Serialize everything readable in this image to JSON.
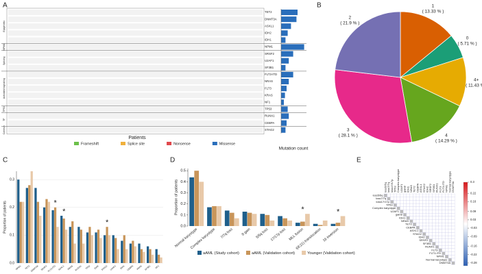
{
  "chart_data": [
    {
      "type": "oncoprint",
      "panel": "A",
      "categories": [
        "TET2",
        "DNMT3A",
        "ASXL1",
        "IDH2",
        "IDH1",
        "NPM1",
        "SRSF2",
        "U2AF1",
        "SF3B1",
        "FLT3-ITD",
        "NRAS",
        "FLT3",
        "KRAS",
        "NF1",
        "TP53",
        "RUNX1",
        "CEBPA",
        "STAG2"
      ],
      "values": [
        30,
        28,
        18,
        12,
        8,
        42,
        22,
        14,
        8,
        22,
        14,
        10,
        7,
        5,
        12,
        14,
        10,
        8
      ],
      "color": "#2a6ebb",
      "xlim": [
        0,
        45
      ],
      "groups": [
        {
          "name": "Epigenetic",
          "genes": [
            "TET2",
            "DNMT3A",
            "ASXL1",
            "IDH2",
            "IDH1"
          ]
        },
        {
          "name": "NPM1",
          "genes": [
            "NPM1"
          ]
        },
        {
          "name": "Splicing",
          "genes": [
            "SRSF2",
            "U2AF1",
            "SF3B1"
          ]
        },
        {
          "name": "Activated signaling",
          "genes": [
            "FLT3-ITD",
            "NRAS",
            "FLT3",
            "KRAS",
            "NF1"
          ]
        },
        {
          "name": "TP53",
          "genes": [
            "TP53"
          ]
        },
        {
          "name": "TF",
          "genes": [
            "RUNX1",
            "CEBPA"
          ]
        },
        {
          "name": "Cohesin",
          "genes": [
            "STAG2"
          ]
        }
      ],
      "xlabel": "Patients",
      "count_label": "Mutation count",
      "mutation_types": [
        {
          "name": "Frameshift",
          "color": "#6cc04a"
        },
        {
          "name": "Splice site",
          "color": "#f0b03c"
        },
        {
          "name": "Nonsense",
          "color": "#e0474c"
        },
        {
          "name": "Missense",
          "color": "#2a6ebb"
        }
      ]
    },
    {
      "type": "pie",
      "panel": "B",
      "categories": [
        "1",
        "0",
        "4+",
        "4",
        "3",
        "2"
      ],
      "values": [
        13.33,
        5.71,
        11.43,
        14.29,
        28.1,
        21.9
      ],
      "value_labels": [
        "( 13.33 % )",
        "( 5.71 % )",
        "( 11.43 % )",
        "( 14.29 % )",
        "( 28.1 % )",
        "( 21.9 % )"
      ],
      "colors": [
        "#d95f02",
        "#1b9e77",
        "#e6ab02",
        "#66a61e",
        "#e7298a",
        "#7570b3"
      ]
    },
    {
      "type": "bar",
      "panel": "C",
      "categories": [
        "NPM1",
        "TET2",
        "DNMT3A",
        "SRSF2",
        "FLT3-ITD",
        "ASXL1",
        "NRAS",
        "RUNX1",
        "TP53",
        "IDH2",
        "STAG2",
        "U2AF1",
        "IDH1",
        "CEBPA",
        "KRAS",
        "SF3B1",
        "NF1"
      ],
      "series": [
        {
          "color": "#1f5f8b",
          "values": [
            0.3,
            0.27,
            0.27,
            0.2,
            0.19,
            0.17,
            0.13,
            0.13,
            0.11,
            0.11,
            0.1,
            0.1,
            0.08,
            0.07,
            0.07,
            0.06,
            0.05
          ]
        },
        {
          "color": "#c8955a",
          "values": [
            0.22,
            0.28,
            0.22,
            0.23,
            0.2,
            0.16,
            0.15,
            0.12,
            0.13,
            0.12,
            0.13,
            0.09,
            0.1,
            0.08,
            0.05,
            0.05,
            0.03
          ]
        },
        {
          "color": "#e8c9a9",
          "values": [
            0.22,
            0.33,
            0.17,
            0.22,
            0.13,
            0.12,
            0.07,
            0.07,
            0.1,
            0.09,
            0.1,
            0.05,
            0.05,
            0.06,
            0.04,
            0.03,
            0.02
          ]
        }
      ],
      "ylim": [
        0,
        0.33
      ],
      "yticks": [
        {
          "value": 0,
          "label": "0.0"
        },
        0.1,
        0.2,
        0.3
      ],
      "grid": true,
      "ylabel": "Proportion of patients",
      "annotations": [
        {
          "text": "*",
          "category": "FLT3-ITD"
        },
        {
          "text": "*",
          "category": "ASXL1"
        },
        {
          "text": "*",
          "category": "STAG2"
        }
      ]
    },
    {
      "type": "bar",
      "panel": "D",
      "categories": [
        "Normal karyotype",
        "Complex karyotype",
        "7/7q loss",
        "8 gain",
        "5/5q loss",
        "17/17p loss",
        "MLL fusion",
        "t(8;21) translocation",
        "16 inversion"
      ],
      "series": [
        {
          "name": "aAML (Study cohort)",
          "color": "#1f5f8b",
          "values": [
            0.44,
            0.17,
            0.14,
            0.13,
            0.11,
            0.09,
            0.03,
            0.02,
            0.02
          ]
        },
        {
          "name": "aAML (Validation cohort)",
          "color": "#c8955a",
          "values": [
            0.5,
            0.18,
            0.12,
            0.12,
            0.1,
            0.07,
            0.04,
            0.01,
            0.03
          ]
        },
        {
          "name": "Younger (Validation cohort)",
          "color": "#e8c9a9",
          "values": [
            0.4,
            0.18,
            0.07,
            0.11,
            0.05,
            0.05,
            0.11,
            0.05,
            0.09
          ]
        }
      ],
      "ylim": [
        0,
        0.52
      ],
      "yticks": [
        {
          "value": 0,
          "label": "0.0"
        },
        0.1,
        0.2,
        0.3,
        0.4,
        0.5
      ],
      "grid": false,
      "ylabel": "Proportion of patients",
      "annotations": [
        {
          "text": "*",
          "category": "MLL fusion"
        },
        {
          "text": "*",
          "category": "16 inversion"
        }
      ]
    },
    {
      "type": "corrplot",
      "panel": "E",
      "labels": [
        "loss5/5q",
        "loss7/7q",
        "loss17/17p",
        "TP53",
        "Complex karyotype",
        "U2AF1",
        "gain8",
        "IDH1",
        "NRAS",
        "TET2",
        "CEBPA",
        "ASXL1",
        "STAG2",
        "IDH2",
        "SRSF2",
        "SF3B1",
        "RUNX1",
        "FLT3",
        "FLT3-ITD",
        "NPM1",
        "Normal karyotype",
        "DNMT3A"
      ],
      "clim": [
        -0.3,
        0.3
      ],
      "colorbar_ticks": [
        0.3,
        0.22,
        0.16,
        0.09,
        0.03,
        -0.03,
        -0.09,
        -0.16,
        -0.22,
        -0.28
      ]
    }
  ]
}
